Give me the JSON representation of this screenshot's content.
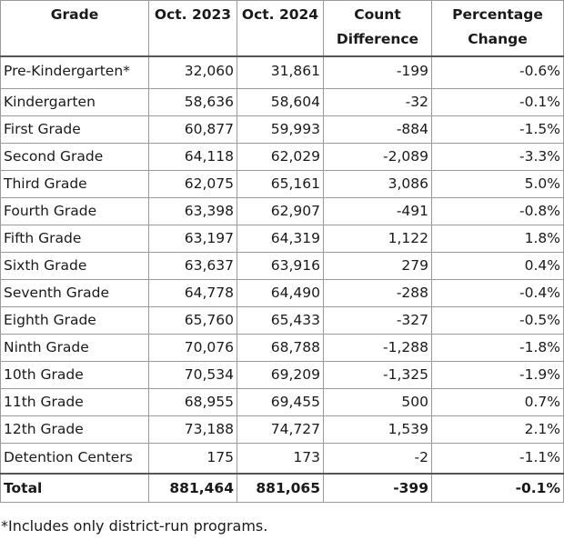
{
  "header": {
    "grade": "Grade",
    "oct2023": "Oct. 2023",
    "oct2024": "Oct. 2024",
    "count_l1": "Count",
    "count_l2": "Difference",
    "pct_l1": "Percentage",
    "pct_l2": "Change"
  },
  "rows": [
    {
      "grade": "Pre-Kindergarten*",
      "oct2023": "32,060",
      "oct2024": "31,861",
      "diff": "-199",
      "pct": "-0.6%"
    },
    {
      "grade": "Kindergarten",
      "oct2023": "58,636",
      "oct2024": "58,604",
      "diff": "-32",
      "pct": "-0.1%"
    },
    {
      "grade": "First Grade",
      "oct2023": "60,877",
      "oct2024": "59,993",
      "diff": "-884",
      "pct": "-1.5%"
    },
    {
      "grade": "Second Grade",
      "oct2023": "64,118",
      "oct2024": "62,029",
      "diff": "-2,089",
      "pct": "-3.3%"
    },
    {
      "grade": "Third Grade",
      "oct2023": "62,075",
      "oct2024": "65,161",
      "diff": "3,086",
      "pct": "5.0%"
    },
    {
      "grade": "Fourth Grade",
      "oct2023": "63,398",
      "oct2024": "62,907",
      "diff": "-491",
      "pct": "-0.8%"
    },
    {
      "grade": "Fifth Grade",
      "oct2023": "63,197",
      "oct2024": "64,319",
      "diff": "1,122",
      "pct": "1.8%"
    },
    {
      "grade": "Sixth Grade",
      "oct2023": "63,637",
      "oct2024": "63,916",
      "diff": "279",
      "pct": "0.4%"
    },
    {
      "grade": "Seventh Grade",
      "oct2023": "64,778",
      "oct2024": "64,490",
      "diff": "-288",
      "pct": "-0.4%"
    },
    {
      "grade": "Eighth Grade",
      "oct2023": "65,760",
      "oct2024": "65,433",
      "diff": "-327",
      "pct": "-0.5%"
    },
    {
      "grade": "Ninth Grade",
      "oct2023": "70,076",
      "oct2024": "68,788",
      "diff": "-1,288",
      "pct": "-1.8%"
    },
    {
      "grade": "10th Grade",
      "oct2023": "70,534",
      "oct2024": "69,209",
      "diff": "-1,325",
      "pct": "-1.9%"
    },
    {
      "grade": "11th Grade",
      "oct2023": "68,955",
      "oct2024": "69,455",
      "diff": "500",
      "pct": "0.7%"
    },
    {
      "grade": "12th Grade",
      "oct2023": "73,188",
      "oct2024": "74,727",
      "diff": "1,539",
      "pct": "2.1%"
    },
    {
      "grade": "Detention Centers",
      "oct2023": "175",
      "oct2024": "173",
      "diff": "-2",
      "pct": "-1.1%"
    }
  ],
  "total": {
    "grade": "Total",
    "oct2023": "881,464",
    "oct2024": "881,065",
    "diff": "-399",
    "pct": "-0.1%"
  },
  "footnote": "*Includes only district-run programs."
}
